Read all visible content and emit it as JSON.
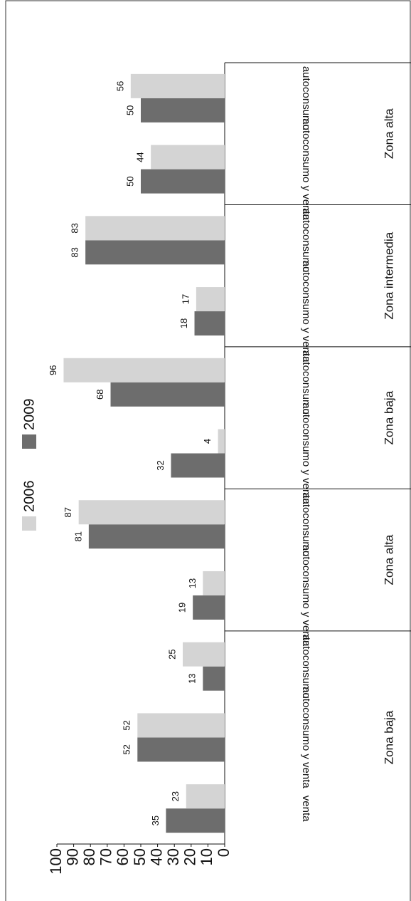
{
  "chart_data": {
    "type": "bar",
    "orientation": "rotated",
    "groups": [
      {
        "label": "Zona baja",
        "categories": [
          "venta",
          "autoconsumo y venta",
          "autoconsumo"
        ]
      },
      {
        "label": "Zona alta",
        "categories": [
          "autoconsumo y venta",
          "autoconsumo"
        ]
      },
      {
        "label": "Zona baja",
        "categories": [
          "autoconsumo y venta",
          "autoconsumo"
        ]
      },
      {
        "label": "Zona intermedia",
        "categories": [
          "autoconsumo y venta",
          "autoconsumo"
        ]
      },
      {
        "label": "Zona alta",
        "categories": [
          "autoconsumo y venta",
          "autoconsumo"
        ]
      }
    ],
    "series": [
      {
        "name": "2009",
        "color": "#6d6d6d",
        "values": [
          35,
          52,
          13,
          19,
          81,
          32,
          68,
          18,
          83,
          50,
          50
        ]
      },
      {
        "name": "2006",
        "color": "#d4d4d4",
        "values": [
          23,
          52,
          25,
          13,
          87,
          4,
          96,
          17,
          83,
          44,
          56
        ]
      }
    ],
    "ylim": [
      0,
      100
    ],
    "yticks": [
      0,
      10,
      20,
      30,
      40,
      50,
      60,
      70,
      80,
      90,
      100
    ]
  }
}
